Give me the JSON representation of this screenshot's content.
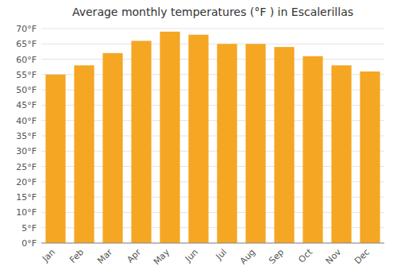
{
  "chart_data": {
    "type": "bar",
    "title": "Average monthly temperatures (°F ) in Escalerillas",
    "categories": [
      "Jan",
      "Feb",
      "Mar",
      "Apr",
      "May",
      "Jun",
      "Jul",
      "Aug",
      "Sep",
      "Oct",
      "Nov",
      "Dec"
    ],
    "values": [
      55,
      58,
      62,
      66,
      69,
      68,
      65,
      65,
      64,
      61,
      58,
      56
    ],
    "color": "#F5A623",
    "ylim": [
      0,
      70
    ],
    "yticks": [
      {
        "value": 0,
        "label": "0°F"
      },
      {
        "value": 5,
        "label": "5°F"
      },
      {
        "value": 10,
        "label": "10°F"
      },
      {
        "value": 15,
        "label": "15°F"
      },
      {
        "value": 20,
        "label": "20°F"
      },
      {
        "value": 25,
        "label": "25°F"
      },
      {
        "value": 30,
        "label": "30°F"
      },
      {
        "value": 35,
        "label": "35°F"
      },
      {
        "value": 40,
        "label": "40°F"
      },
      {
        "value": 45,
        "label": "45°F"
      },
      {
        "value": 50,
        "label": "50°F"
      },
      {
        "value": 55,
        "label": "55°F"
      },
      {
        "value": 60,
        "label": "60°F"
      },
      {
        "value": 65,
        "label": "65°F"
      },
      {
        "value": 70,
        "label": "70°F"
      }
    ],
    "grid": true
  }
}
